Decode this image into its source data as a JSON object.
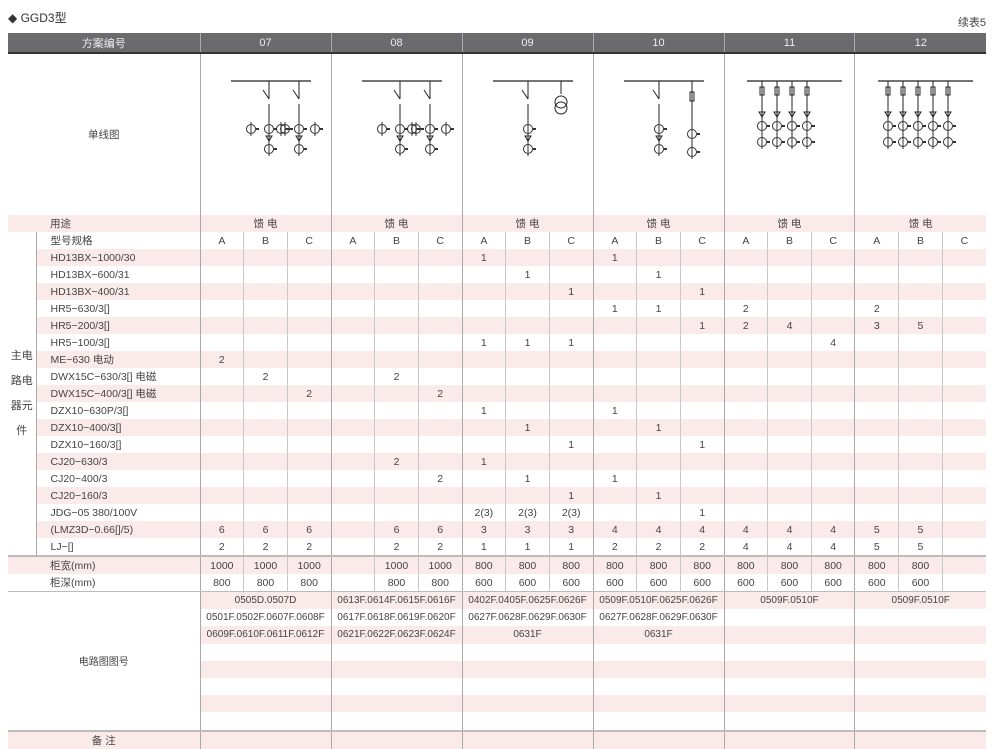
{
  "title": "◆ GGD3型",
  "continuation": "续表5",
  "header": {
    "label": "方案编号",
    "schemes": [
      "07",
      "08",
      "09",
      "10",
      "11",
      "12"
    ]
  },
  "diagram_label": "单线图",
  "usage": {
    "label": "用途",
    "values": [
      "馈 电",
      "馈 电",
      "馈 电",
      "馈 电",
      "馈 电",
      "馈 电"
    ]
  },
  "side_label": "主电路电器元件",
  "spec_row": {
    "label": "型号规格",
    "subcols": [
      "A",
      "B",
      "C"
    ]
  },
  "components": [
    {
      "name": "HD13BX−1000/30",
      "values": [
        "",
        "",
        "",
        "",
        "",
        "",
        "1",
        "",
        "",
        "1",
        "",
        "",
        "",
        "",
        "",
        "",
        "",
        ""
      ]
    },
    {
      "name": "HD13BX−600/31",
      "values": [
        "",
        "",
        "",
        "",
        "",
        "",
        "",
        "1",
        "",
        "",
        "1",
        "",
        "",
        "",
        "",
        "",
        "",
        ""
      ]
    },
    {
      "name": "HD13BX−400/31",
      "values": [
        "",
        "",
        "",
        "",
        "",
        "",
        "",
        "",
        "1",
        "",
        "",
        "1",
        "",
        "",
        "",
        "",
        "",
        ""
      ]
    },
    {
      "name": "HR5−630/3[]",
      "values": [
        "",
        "",
        "",
        "",
        "",
        "",
        "",
        "",
        "",
        "1",
        "1",
        "",
        "2",
        "",
        "",
        "2",
        "",
        ""
      ]
    },
    {
      "name": "HR5−200/3[]",
      "values": [
        "",
        "",
        "",
        "",
        "",
        "",
        "",
        "",
        "",
        "",
        "",
        "1",
        "2",
        "4",
        "",
        "3",
        "5",
        ""
      ]
    },
    {
      "name": "HR5−100/3[]",
      "values": [
        "",
        "",
        "",
        "",
        "",
        "",
        "1",
        "1",
        "1",
        "",
        "",
        "",
        "",
        "",
        "4",
        "",
        "",
        ""
      ]
    },
    {
      "name": "ME−630  电动",
      "values": [
        "2",
        "",
        "",
        "",
        "",
        "",
        "",
        "",
        "",
        "",
        "",
        "",
        "",
        "",
        "",
        "",
        "",
        ""
      ]
    },
    {
      "name": "DWX15C−630/3[] 电磁",
      "values": [
        "",
        "2",
        "",
        "",
        "2",
        "",
        "",
        "",
        "",
        "",
        "",
        "",
        "",
        "",
        "",
        "",
        "",
        ""
      ]
    },
    {
      "name": "DWX15C−400/3[] 电磁",
      "values": [
        "",
        "",
        "2",
        "",
        "",
        "2",
        "",
        "",
        "",
        "",
        "",
        "",
        "",
        "",
        "",
        "",
        "",
        ""
      ]
    },
    {
      "name": "DZX10−630P/3[]",
      "values": [
        "",
        "",
        "",
        "",
        "",
        "",
        "1",
        "",
        "",
        "1",
        "",
        "",
        "",
        "",
        "",
        "",
        "",
        ""
      ]
    },
    {
      "name": "DZX10−400/3[]",
      "values": [
        "",
        "",
        "",
        "",
        "",
        "",
        "",
        "1",
        "",
        "",
        "1",
        "",
        "",
        "",
        "",
        "",
        "",
        ""
      ]
    },
    {
      "name": "DZX10−160/3[]",
      "values": [
        "",
        "",
        "",
        "",
        "",
        "",
        "",
        "",
        "1",
        "",
        "",
        "1",
        "",
        "",
        "",
        "",
        "",
        ""
      ]
    },
    {
      "name": "CJ20−630/3",
      "values": [
        "",
        "",
        "",
        "",
        "2",
        "",
        "1",
        "",
        "",
        "",
        "",
        "",
        "",
        "",
        "",
        "",
        "",
        ""
      ]
    },
    {
      "name": "CJ20−400/3",
      "values": [
        "",
        "",
        "",
        "",
        "",
        "2",
        "",
        "1",
        "",
        "1",
        "",
        "",
        "",
        "",
        "",
        "",
        "",
        ""
      ]
    },
    {
      "name": "CJ20−160/3",
      "values": [
        "",
        "",
        "",
        "",
        "",
        "",
        "",
        "",
        "1",
        "",
        "1",
        "",
        "",
        "",
        "",
        "",
        "",
        ""
      ]
    },
    {
      "name": "JDG−05  380/100V",
      "values": [
        "",
        "",
        "",
        "",
        "",
        "",
        "2(3)",
        "2(3)",
        "2(3)",
        "",
        "",
        "1",
        "",
        "",
        "",
        "",
        "",
        ""
      ]
    },
    {
      "name": "(LMZ3D−0.66[]/5)",
      "values": [
        "6",
        "6",
        "6",
        "",
        "6",
        "6",
        "3",
        "3",
        "3",
        "4",
        "4",
        "4",
        "4",
        "4",
        "4",
        "5",
        "5",
        ""
      ]
    },
    {
      "name": "LJ−[]",
      "values": [
        "2",
        "2",
        "2",
        "",
        "2",
        "2",
        "1",
        "1",
        "1",
        "2",
        "2",
        "2",
        "4",
        "4",
        "4",
        "5",
        "5",
        ""
      ]
    }
  ],
  "width": {
    "label": "柜宽(mm)",
    "values": [
      "1000",
      "1000",
      "1000",
      "",
      "1000",
      "1000",
      "800",
      "800",
      "800",
      "800",
      "800",
      "800",
      "800",
      "800",
      "800",
      "800",
      "800",
      ""
    ]
  },
  "depth": {
    "label": "柜深(mm)",
    "values": [
      "800",
      "800",
      "800",
      "",
      "800",
      "800",
      "600",
      "600",
      "600",
      "600",
      "600",
      "600",
      "600",
      "600",
      "600",
      "600",
      "600",
      ""
    ]
  },
  "circuit": {
    "label": "电路图图号",
    "codes": [
      [
        "0505D.0507D",
        "0501F.0502F.0607F.0608F",
        "0609F.0610F.0611F.0612F"
      ],
      [
        "0613F.0614F.0615F.0616F",
        "0617F.0618F.0619F.0620F",
        "0621F.0622F.0623F.0624F"
      ],
      [
        "0402F.0405F.0625F.0626F",
        "0627F.0628F.0629F.0630F",
        "0631F"
      ],
      [
        "0509F.0510F.0625F.0626F",
        "0627F.0628F.0629F.0630F",
        "0631F"
      ],
      [
        "0509F.0510F"
      ],
      [
        "0509F.0510F"
      ]
    ]
  },
  "remarks": {
    "label": "备 注"
  },
  "colors": {
    "header_bg": "#6b6b6d",
    "stripe": "#fbeaea"
  }
}
